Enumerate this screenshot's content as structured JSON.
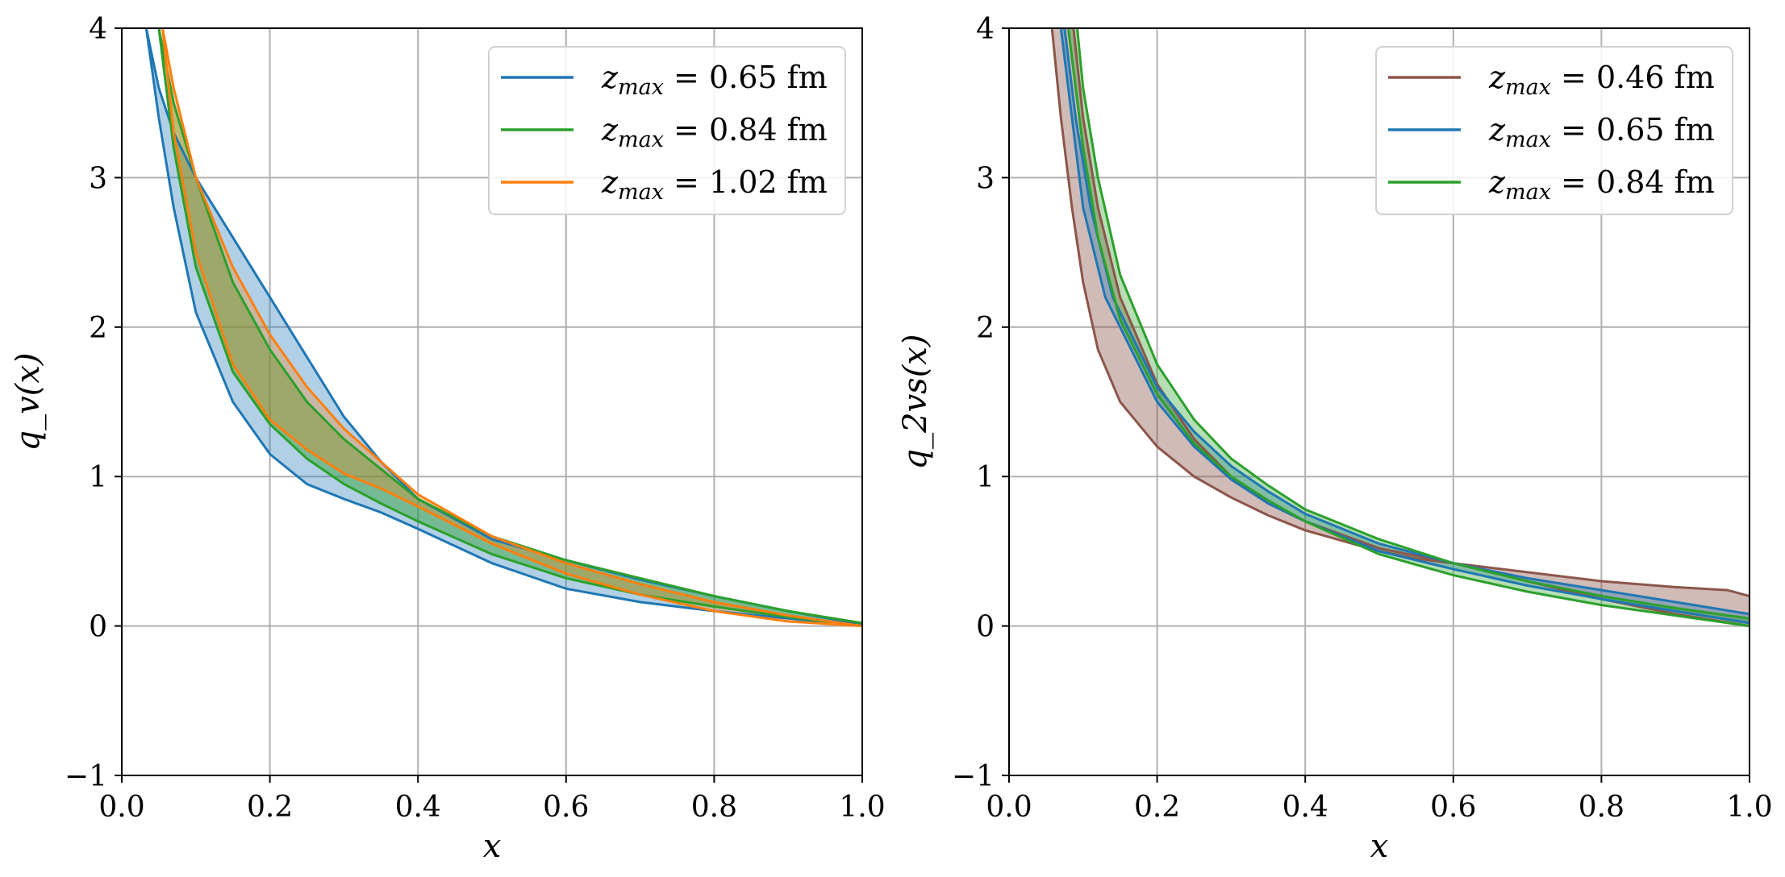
{
  "colors": {
    "blue": "#1f77b4",
    "green": "#2ca02c",
    "orange": "#ff7f0e",
    "brown": "#8c564b",
    "grid": "#b0b0b0",
    "olive_fill": "#a6a05e"
  },
  "chart_data": [
    {
      "type": "line",
      "xlabel": "x",
      "ylabel": "q_v(x)",
      "xlim": [
        0.0,
        1.0
      ],
      "ylim": [
        -1,
        4
      ],
      "xticks": [
        0.0,
        0.2,
        0.4,
        0.6,
        0.8,
        1.0
      ],
      "xtick_labels": [
        "0.0",
        "0.2",
        "0.4",
        "0.6",
        "0.8",
        "1.0"
      ],
      "yticks": [
        -1,
        0,
        1,
        2,
        3,
        4
      ],
      "ytick_labels": [
        "−1",
        "0",
        "1",
        "2",
        "3",
        "4"
      ],
      "grid": true,
      "legend_position": "top-right",
      "series": [
        {
          "name": "z_max = 0.65 fm",
          "legend_var": "z",
          "legend_sub": "max",
          "legend_rest": " = 0.65 fm",
          "color": "blue",
          "band_fill_opacity": 0.35,
          "upper": [
            [
              0.033,
              4.0
            ],
            [
              0.05,
              3.6
            ],
            [
              0.07,
              3.3
            ],
            [
              0.1,
              3.0
            ],
            [
              0.15,
              2.6
            ],
            [
              0.2,
              2.2
            ],
            [
              0.25,
              1.8
            ],
            [
              0.3,
              1.4
            ],
            [
              0.35,
              1.1
            ],
            [
              0.4,
              0.85
            ],
            [
              0.5,
              0.58
            ],
            [
              0.6,
              0.44
            ],
            [
              0.7,
              0.31
            ],
            [
              0.8,
              0.2
            ],
            [
              0.9,
              0.1
            ],
            [
              1.0,
              0.01
            ]
          ],
          "lower": [
            [
              0.033,
              4.0
            ],
            [
              0.05,
              3.4
            ],
            [
              0.07,
              2.8
            ],
            [
              0.1,
              2.1
            ],
            [
              0.15,
              1.5
            ],
            [
              0.2,
              1.15
            ],
            [
              0.25,
              0.95
            ],
            [
              0.3,
              0.85
            ],
            [
              0.35,
              0.76
            ],
            [
              0.4,
              0.65
            ],
            [
              0.5,
              0.42
            ],
            [
              0.6,
              0.25
            ],
            [
              0.7,
              0.16
            ],
            [
              0.8,
              0.1
            ],
            [
              0.9,
              0.05
            ],
            [
              1.0,
              0.0
            ]
          ]
        },
        {
          "name": "z_max = 0.84 fm",
          "legend_var": "z",
          "legend_sub": "max",
          "legend_rest": " = 0.84 fm",
          "color": "green",
          "band_fill_opacity": 0.45,
          "upper": [
            [
              0.05,
              4.0
            ],
            [
              0.07,
              3.5
            ],
            [
              0.1,
              3.0
            ],
            [
              0.15,
              2.3
            ],
            [
              0.2,
              1.85
            ],
            [
              0.25,
              1.5
            ],
            [
              0.3,
              1.25
            ],
            [
              0.35,
              1.05
            ],
            [
              0.4,
              0.85
            ],
            [
              0.5,
              0.6
            ],
            [
              0.6,
              0.44
            ],
            [
              0.7,
              0.32
            ],
            [
              0.8,
              0.2
            ],
            [
              0.9,
              0.1
            ],
            [
              1.0,
              0.02
            ]
          ],
          "lower": [
            [
              0.05,
              4.0
            ],
            [
              0.07,
              3.2
            ],
            [
              0.1,
              2.4
            ],
            [
              0.15,
              1.7
            ],
            [
              0.2,
              1.35
            ],
            [
              0.25,
              1.12
            ],
            [
              0.3,
              0.95
            ],
            [
              0.35,
              0.82
            ],
            [
              0.4,
              0.7
            ],
            [
              0.5,
              0.48
            ],
            [
              0.6,
              0.32
            ],
            [
              0.7,
              0.21
            ],
            [
              0.8,
              0.13
            ],
            [
              0.9,
              0.06
            ],
            [
              1.0,
              0.0
            ]
          ]
        },
        {
          "name": "z_max = 1.02 fm",
          "legend_var": "z",
          "legend_sub": "max",
          "legend_rest": " = 1.02 fm",
          "color": "orange",
          "band_fill_opacity": 0.3,
          "upper": [
            [
              0.055,
              4.0
            ],
            [
              0.07,
              3.6
            ],
            [
              0.1,
              3.0
            ],
            [
              0.15,
              2.4
            ],
            [
              0.2,
              1.95
            ],
            [
              0.25,
              1.6
            ],
            [
              0.3,
              1.32
            ],
            [
              0.35,
              1.1
            ],
            [
              0.4,
              0.88
            ],
            [
              0.5,
              0.6
            ],
            [
              0.6,
              0.42
            ],
            [
              0.7,
              0.28
            ],
            [
              0.8,
              0.16
            ],
            [
              0.9,
              0.07
            ],
            [
              1.0,
              0.0
            ]
          ],
          "lower": [
            [
              0.055,
              4.0
            ],
            [
              0.07,
              3.3
            ],
            [
              0.1,
              2.5
            ],
            [
              0.15,
              1.75
            ],
            [
              0.2,
              1.38
            ],
            [
              0.25,
              1.18
            ],
            [
              0.3,
              1.02
            ],
            [
              0.35,
              0.92
            ],
            [
              0.4,
              0.8
            ],
            [
              0.5,
              0.55
            ],
            [
              0.6,
              0.35
            ],
            [
              0.7,
              0.21
            ],
            [
              0.8,
              0.1
            ],
            [
              0.9,
              0.03
            ],
            [
              1.0,
              0.0
            ]
          ]
        }
      ]
    },
    {
      "type": "line",
      "xlabel": "x",
      "ylabel": "q_2vs(x)",
      "xlim": [
        0.0,
        1.0
      ],
      "ylim": [
        -1,
        4
      ],
      "xticks": [
        0.0,
        0.2,
        0.4,
        0.6,
        0.8,
        1.0
      ],
      "xtick_labels": [
        "0.0",
        "0.2",
        "0.4",
        "0.6",
        "0.8",
        "1.0"
      ],
      "yticks": [
        -1,
        0,
        1,
        2,
        3,
        4
      ],
      "ytick_labels": [
        "−1",
        "0",
        "1",
        "2",
        "3",
        "4"
      ],
      "grid": true,
      "legend_position": "top-right",
      "series": [
        {
          "name": "z_max = 0.46 fm",
          "legend_var": "z",
          "legend_sub": "max",
          "legend_rest": " = 0.46 fm",
          "color": "brown",
          "band_fill_opacity": 0.4,
          "upper": [
            [
              0.087,
              4.0
            ],
            [
              0.1,
              3.4
            ],
            [
              0.12,
              2.8
            ],
            [
              0.15,
              2.2
            ],
            [
              0.2,
              1.62
            ],
            [
              0.25,
              1.25
            ],
            [
              0.3,
              1.0
            ],
            [
              0.35,
              0.82
            ],
            [
              0.4,
              0.7
            ],
            [
              0.5,
              0.52
            ],
            [
              0.6,
              0.42
            ],
            [
              0.7,
              0.36
            ],
            [
              0.8,
              0.3
            ],
            [
              0.9,
              0.26
            ],
            [
              0.97,
              0.24
            ],
            [
              1.0,
              0.2
            ]
          ],
          "lower": [
            [
              0.058,
              4.0
            ],
            [
              0.07,
              3.4
            ],
            [
              0.085,
              2.8
            ],
            [
              0.1,
              2.3
            ],
            [
              0.12,
              1.85
            ],
            [
              0.15,
              1.5
            ],
            [
              0.2,
              1.2
            ],
            [
              0.25,
              1.0
            ],
            [
              0.3,
              0.86
            ],
            [
              0.35,
              0.74
            ],
            [
              0.4,
              0.64
            ],
            [
              0.5,
              0.5
            ],
            [
              0.55,
              0.45
            ],
            [
              0.6,
              0.42
            ],
            [
              0.7,
              0.3
            ],
            [
              0.8,
              0.18
            ],
            [
              0.9,
              0.08
            ],
            [
              1.0,
              0.0
            ]
          ]
        },
        {
          "name": "z_max = 0.65 fm",
          "legend_var": "z",
          "legend_sub": "max",
          "legend_rest": " = 0.65 fm",
          "color": "blue",
          "band_fill_opacity": 0.35,
          "upper": [
            [
              0.075,
              4.0
            ],
            [
              0.09,
              3.4
            ],
            [
              0.11,
              2.8
            ],
            [
              0.14,
              2.2
            ],
            [
              0.2,
              1.6
            ],
            [
              0.25,
              1.3
            ],
            [
              0.3,
              1.07
            ],
            [
              0.35,
              0.9
            ],
            [
              0.4,
              0.75
            ],
            [
              0.5,
              0.55
            ],
            [
              0.6,
              0.42
            ],
            [
              0.7,
              0.32
            ],
            [
              0.8,
              0.24
            ],
            [
              0.9,
              0.16
            ],
            [
              1.0,
              0.08
            ]
          ],
          "lower": [
            [
              0.07,
              4.0
            ],
            [
              0.085,
              3.4
            ],
            [
              0.1,
              2.8
            ],
            [
              0.13,
              2.2
            ],
            [
              0.2,
              1.5
            ],
            [
              0.25,
              1.2
            ],
            [
              0.3,
              0.98
            ],
            [
              0.35,
              0.82
            ],
            [
              0.4,
              0.7
            ],
            [
              0.5,
              0.5
            ],
            [
              0.6,
              0.38
            ],
            [
              0.7,
              0.27
            ],
            [
              0.8,
              0.18
            ],
            [
              0.9,
              0.1
            ],
            [
              1.0,
              0.02
            ]
          ]
        },
        {
          "name": "z_max = 0.84 fm",
          "legend_var": "z",
          "legend_sub": "max",
          "legend_rest": " = 0.84 fm",
          "color": "green",
          "band_fill_opacity": 0.35,
          "upper": [
            [
              0.092,
              4.0
            ],
            [
              0.1,
              3.6
            ],
            [
              0.12,
              3.0
            ],
            [
              0.15,
              2.35
            ],
            [
              0.2,
              1.75
            ],
            [
              0.25,
              1.38
            ],
            [
              0.3,
              1.12
            ],
            [
              0.35,
              0.94
            ],
            [
              0.4,
              0.78
            ],
            [
              0.5,
              0.58
            ],
            [
              0.6,
              0.42
            ],
            [
              0.7,
              0.3
            ],
            [
              0.8,
              0.2
            ],
            [
              0.9,
              0.12
            ],
            [
              1.0,
              0.05
            ]
          ],
          "lower": [
            [
              0.08,
              4.0
            ],
            [
              0.1,
              3.2
            ],
            [
              0.12,
              2.6
            ],
            [
              0.15,
              2.05
            ],
            [
              0.2,
              1.55
            ],
            [
              0.25,
              1.22
            ],
            [
              0.3,
              1.0
            ],
            [
              0.35,
              0.84
            ],
            [
              0.4,
              0.7
            ],
            [
              0.5,
              0.48
            ],
            [
              0.6,
              0.34
            ],
            [
              0.7,
              0.23
            ],
            [
              0.8,
              0.14
            ],
            [
              0.9,
              0.07
            ],
            [
              1.0,
              0.0
            ]
          ]
        }
      ]
    }
  ]
}
